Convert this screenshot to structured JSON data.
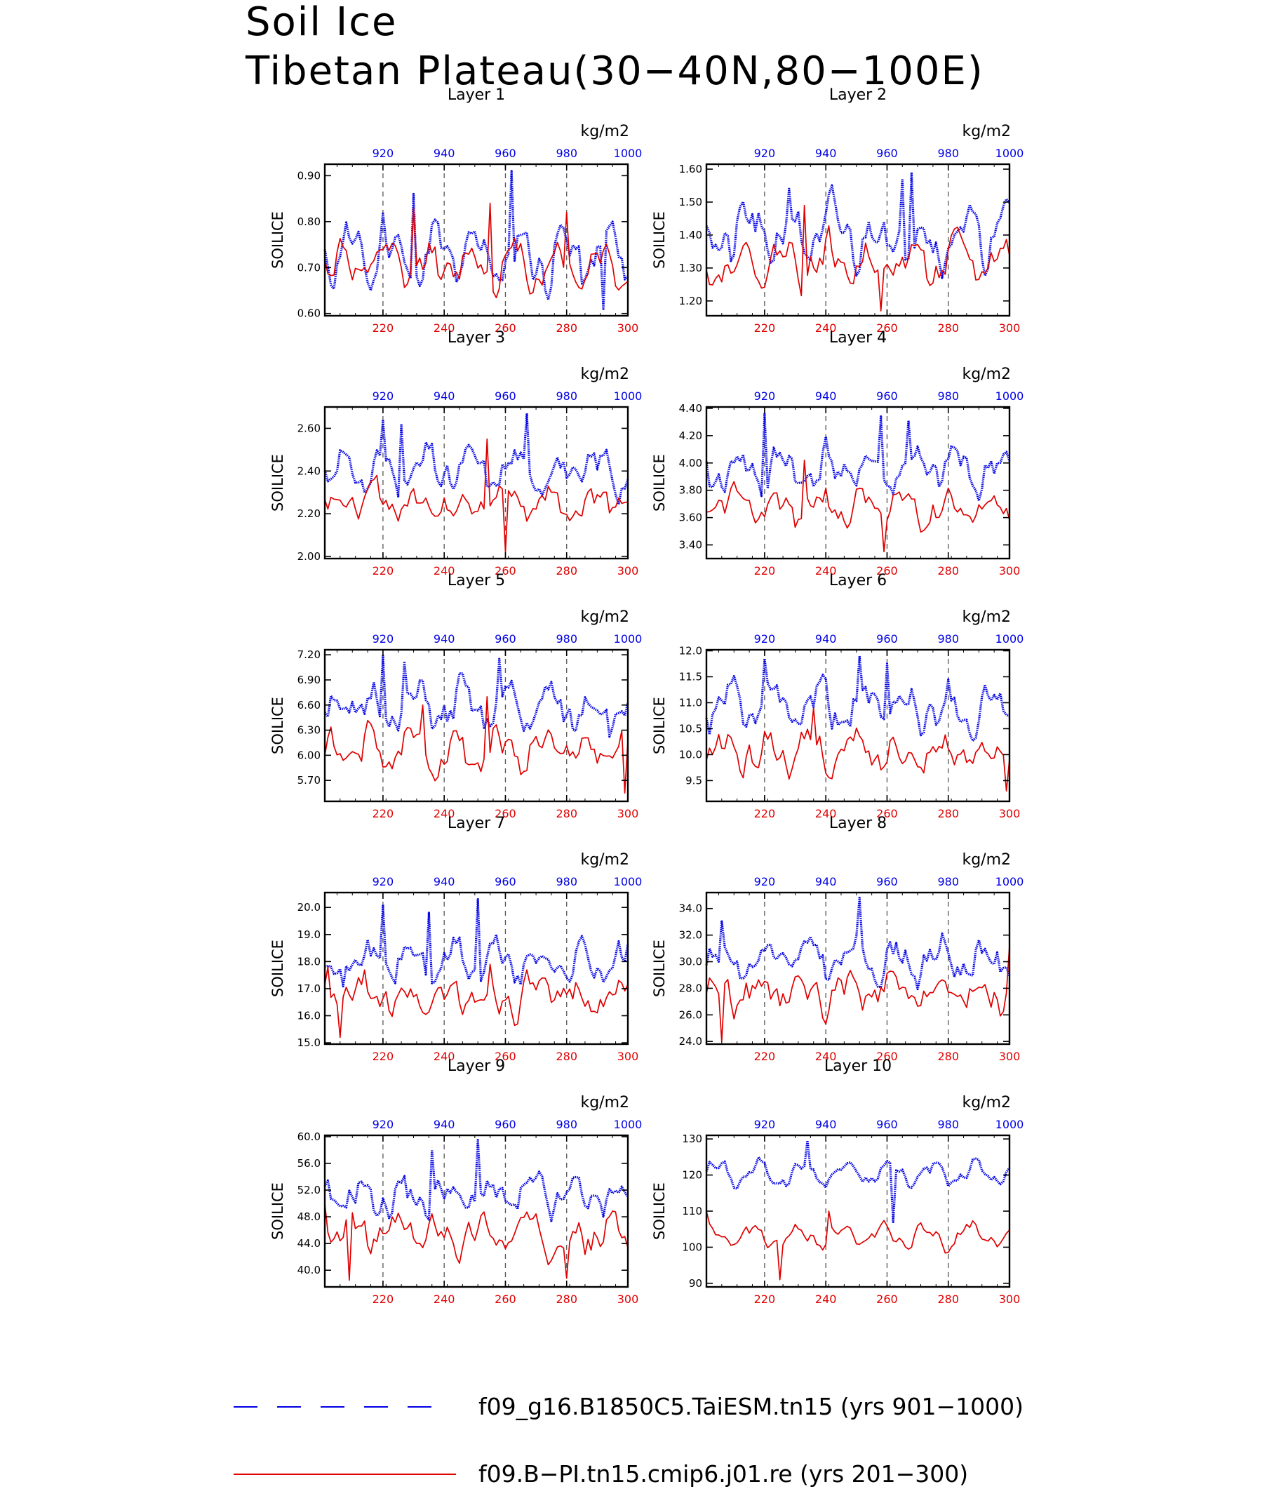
{
  "title": {
    "line1": "Soil Ice",
    "line2": "Tibetan Plateau(30−40N,80−100E)"
  },
  "colors": {
    "series_top": "#0000e6",
    "series_bottom": "#e00000"
  },
  "legend": [
    {
      "label": "f09_g16.B1850C5.TaiESM.tn15 (yrs 901−1000)",
      "style": "dashed",
      "color": "#0000e6"
    },
    {
      "label": "f09.B−PI.tn15.cmip6.j01.re (yrs 201−300)",
      "style": "solid",
      "color": "#e00000"
    }
  ],
  "chart_data": [
    {
      "type": "line",
      "title": "Layer 1",
      "ylabel": "SOILICE",
      "units": "kg/m2",
      "yticks": [
        "0.60",
        "0.70",
        "0.80",
        "0.90"
      ],
      "ylim": [
        0.595,
        0.925
      ],
      "xticks_bottom": [
        "220",
        "240",
        "260",
        "280",
        "300"
      ],
      "xticks_top": [
        "920",
        "940",
        "960",
        "980",
        "1000"
      ],
      "xlim_bottom": [
        201,
        300
      ],
      "xlim_top": [
        901,
        1000
      ],
      "series": [
        {
          "x_axis": "top",
          "base": 0.725,
          "amp": 0.055,
          "noise": 0.06,
          "peaks": [
            [
              920,
              0.82
            ],
            [
              930,
              0.86
            ],
            [
              962,
              0.91
            ],
            [
              992,
              0.61
            ]
          ],
          "lo": 0.605,
          "hi": 0.91,
          "seed": 11
        },
        {
          "x_axis": "bottom",
          "base": 0.705,
          "amp": 0.04,
          "noise": 0.045,
          "peaks": [
            [
              230,
              0.83
            ],
            [
              255,
              0.84
            ],
            [
              280,
              0.82
            ]
          ],
          "lo": 0.62,
          "hi": 0.84,
          "seed": 12
        }
      ]
    },
    {
      "type": "line",
      "title": "Layer 2",
      "ylabel": "SOILICE",
      "units": "kg/m2",
      "yticks": [
        "1.20",
        "1.30",
        "1.40",
        "1.50",
        "1.60"
      ],
      "ylim": [
        1.155,
        1.615
      ],
      "xticks_bottom": [
        "220",
        "240",
        "260",
        "280",
        "300"
      ],
      "xticks_top": [
        "920",
        "940",
        "960",
        "980",
        "1000"
      ],
      "xlim_bottom": [
        201,
        300
      ],
      "xlim_top": [
        901,
        1000
      ],
      "series": [
        {
          "x_axis": "top",
          "base": 1.4,
          "amp": 0.07,
          "noise": 0.09,
          "peaks": [
            [
              928,
              1.54
            ],
            [
              965,
              1.57
            ],
            [
              968,
              1.59
            ]
          ],
          "lo": 1.25,
          "hi": 1.59,
          "seed": 21
        },
        {
          "x_axis": "bottom",
          "base": 1.32,
          "amp": 0.05,
          "noise": 0.07,
          "peaks": [
            [
              233,
              1.49
            ],
            [
              258,
              1.17
            ]
          ],
          "lo": 1.17,
          "hi": 1.49,
          "seed": 22
        }
      ]
    },
    {
      "type": "line",
      "title": "Layer 3",
      "ylabel": "SOILICE",
      "units": "kg/m2",
      "yticks": [
        "2.00",
        "2.20",
        "2.40",
        "2.60"
      ],
      "ylim": [
        1.99,
        2.7
      ],
      "xticks_bottom": [
        "220",
        "240",
        "260",
        "280",
        "300"
      ],
      "xticks_top": [
        "920",
        "940",
        "960",
        "980",
        "1000"
      ],
      "xlim_bottom": [
        201,
        300
      ],
      "xlim_top": [
        901,
        1000
      ],
      "series": [
        {
          "x_axis": "top",
          "base": 2.4,
          "amp": 0.08,
          "noise": 0.1,
          "peaks": [
            [
              920,
              2.64
            ],
            [
              926,
              2.62
            ],
            [
              967,
              2.67
            ]
          ],
          "lo": 2.18,
          "hi": 2.67,
          "seed": 31
        },
        {
          "x_axis": "bottom",
          "base": 2.26,
          "amp": 0.06,
          "noise": 0.09,
          "peaks": [
            [
              254,
              2.55
            ],
            [
              260,
              2.02
            ]
          ],
          "lo": 2.02,
          "hi": 2.55,
          "seed": 32
        }
      ]
    },
    {
      "type": "line",
      "title": "Layer 4",
      "ylabel": "SOILICE",
      "units": "kg/m2",
      "yticks": [
        "3.40",
        "3.60",
        "3.80",
        "4.00",
        "4.20",
        "4.40"
      ],
      "ylim": [
        3.3,
        4.41
      ],
      "xticks_bottom": [
        "220",
        "240",
        "260",
        "280",
        "300"
      ],
      "xticks_top": [
        "920",
        "940",
        "960",
        "980",
        "1000"
      ],
      "xlim_bottom": [
        201,
        300
      ],
      "xlim_top": [
        901,
        1000
      ],
      "series": [
        {
          "x_axis": "top",
          "base": 3.95,
          "amp": 0.13,
          "noise": 0.17,
          "peaks": [
            [
              920,
              4.36
            ],
            [
              958,
              4.34
            ],
            [
              967,
              4.31
            ]
          ],
          "lo": 3.52,
          "hi": 4.36,
          "seed": 41
        },
        {
          "x_axis": "bottom",
          "base": 3.68,
          "amp": 0.11,
          "noise": 0.14,
          "peaks": [
            [
              233,
              4.02
            ],
            [
              259,
              3.35
            ]
          ],
          "lo": 3.35,
          "hi": 4.02,
          "seed": 42
        }
      ]
    },
    {
      "type": "line",
      "title": "Layer 5",
      "ylabel": "SOILICE",
      "units": "kg/m2",
      "yticks": [
        "5.70",
        "6.00",
        "6.30",
        "6.60",
        "6.90",
        "7.20"
      ],
      "ylim": [
        5.45,
        7.26
      ],
      "xticks_bottom": [
        "220",
        "240",
        "260",
        "280",
        "300"
      ],
      "xticks_top": [
        "920",
        "940",
        "960",
        "980",
        "1000"
      ],
      "xlim_bottom": [
        201,
        300
      ],
      "xlim_top": [
        901,
        1000
      ],
      "series": [
        {
          "x_axis": "top",
          "base": 6.55,
          "amp": 0.22,
          "noise": 0.3,
          "peaks": [
            [
              920,
              7.2
            ],
            [
              927,
              7.12
            ],
            [
              958,
              7.15
            ]
          ],
          "lo": 5.95,
          "hi": 7.2,
          "seed": 51
        },
        {
          "x_axis": "bottom",
          "base": 6.05,
          "amp": 0.18,
          "noise": 0.26,
          "peaks": [
            [
              233,
              6.6
            ],
            [
              254,
              6.7
            ],
            [
              299,
              5.55
            ]
          ],
          "lo": 5.55,
          "hi": 6.7,
          "seed": 52
        }
      ]
    },
    {
      "type": "line",
      "title": "Layer 6",
      "ylabel": "SOILICE",
      "units": "kg/m2",
      "yticks": [
        "9.5",
        "10.0",
        "10.5",
        "11.0",
        "11.5",
        "12.0"
      ],
      "ylim": [
        9.1,
        12.02
      ],
      "xticks_bottom": [
        "220",
        "240",
        "260",
        "280",
        "300"
      ],
      "xticks_top": [
        "920",
        "940",
        "960",
        "980",
        "1000"
      ],
      "xlim_bottom": [
        201,
        300
      ],
      "xlim_top": [
        901,
        1000
      ],
      "series": [
        {
          "x_axis": "top",
          "base": 10.9,
          "amp": 0.35,
          "noise": 0.45,
          "peaks": [
            [
              920,
              11.85
            ],
            [
              951,
              11.9
            ],
            [
              960,
              11.75
            ]
          ],
          "lo": 9.95,
          "hi": 11.9,
          "seed": 61
        },
        {
          "x_axis": "bottom",
          "base": 10.05,
          "amp": 0.3,
          "noise": 0.4,
          "peaks": [
            [
              236,
              10.9
            ],
            [
              299,
              9.3
            ]
          ],
          "lo": 9.3,
          "hi": 11.0,
          "seed": 62
        }
      ]
    },
    {
      "type": "line",
      "title": "Layer 7",
      "ylabel": "SOILICE",
      "units": "kg/m2",
      "yticks": [
        "15.0",
        "16.0",
        "17.0",
        "18.0",
        "19.0",
        "20.0"
      ],
      "ylim": [
        14.95,
        20.55
      ],
      "xticks_bottom": [
        "220",
        "240",
        "260",
        "280",
        "300"
      ],
      "xticks_top": [
        "920",
        "940",
        "960",
        "980",
        "1000"
      ],
      "xlim_bottom": [
        201,
        300
      ],
      "xlim_top": [
        901,
        1000
      ],
      "series": [
        {
          "x_axis": "top",
          "base": 18.0,
          "amp": 0.6,
          "noise": 0.8,
          "peaks": [
            [
              920,
              20.1
            ],
            [
              951,
              20.3
            ],
            [
              935,
              19.8
            ]
          ],
          "lo": 16.2,
          "hi": 20.3,
          "seed": 71
        },
        {
          "x_axis": "bottom",
          "base": 16.7,
          "amp": 0.5,
          "noise": 0.8,
          "peaks": [
            [
              202,
              17.8
            ],
            [
              255,
              17.9
            ],
            [
              206,
              15.2
            ]
          ],
          "lo": 15.2,
          "hi": 17.9,
          "seed": 72
        }
      ]
    },
    {
      "type": "line",
      "title": "Layer 8",
      "ylabel": "SOILICE",
      "units": "kg/m2",
      "yticks": [
        "24.0",
        "26.0",
        "28.0",
        "30.0",
        "32.0",
        "34.0"
      ],
      "ylim": [
        23.8,
        35.2
      ],
      "xticks_bottom": [
        "220",
        "240",
        "260",
        "280",
        "300"
      ],
      "xticks_top": [
        "920",
        "940",
        "960",
        "980",
        "1000"
      ],
      "xlim_bottom": [
        201,
        300
      ],
      "xlim_top": [
        901,
        1000
      ],
      "series": [
        {
          "x_axis": "top",
          "base": 30.2,
          "amp": 1.1,
          "noise": 1.5,
          "peaks": [
            [
              951,
              34.8
            ],
            [
              906,
              33.1
            ]
          ],
          "lo": 26.3,
          "hi": 34.8,
          "seed": 81
        },
        {
          "x_axis": "bottom",
          "base": 27.6,
          "amp": 1.0,
          "noise": 1.6,
          "peaks": [
            [
              206,
              24.0
            ],
            [
              300,
              31.2
            ]
          ],
          "lo": 24.0,
          "hi": 31.5,
          "seed": 82
        }
      ]
    },
    {
      "type": "line",
      "title": "Layer 9",
      "ylabel": "SOILICE",
      "units": "kg/m2",
      "yticks": [
        "40.0",
        "44.0",
        "48.0",
        "52.0",
        "56.0",
        "60.0"
      ],
      "ylim": [
        37.5,
        60.2
      ],
      "xticks_bottom": [
        "220",
        "240",
        "260",
        "280",
        "300"
      ],
      "xticks_top": [
        "920",
        "940",
        "960",
        "980",
        "1000"
      ],
      "xlim_bottom": [
        201,
        300
      ],
      "xlim_top": [
        901,
        1000
      ],
      "series": [
        {
          "x_axis": "top",
          "base": 51.0,
          "amp": 2.2,
          "noise": 3.0,
          "peaks": [
            [
              951,
              59.5
            ],
            [
              936,
              58.0
            ]
          ],
          "lo": 42.8,
          "hi": 59.5,
          "seed": 91
        },
        {
          "x_axis": "bottom",
          "base": 45.5,
          "amp": 2.0,
          "noise": 3.2,
          "peaks": [
            [
              209,
              38.5
            ],
            [
              280,
              38.8
            ],
            [
              201,
              50.0
            ]
          ],
          "lo": 38.5,
          "hi": 51.0,
          "seed": 92
        }
      ]
    },
    {
      "type": "line",
      "title": "Layer 10",
      "ylabel": "SOILICE",
      "units": "kg/m2",
      "yticks": [
        "90",
        "100",
        "110",
        "120",
        "130"
      ],
      "ylim": [
        89,
        131
      ],
      "xticks_bottom": [
        "220",
        "240",
        "260",
        "280",
        "300"
      ],
      "xticks_top": [
        "920",
        "940",
        "960",
        "980",
        "1000"
      ],
      "xlim_bottom": [
        201,
        300
      ],
      "xlim_top": [
        901,
        1000
      ],
      "series": [
        {
          "x_axis": "top",
          "base": 120.5,
          "amp": 3.0,
          "noise": 2.2,
          "peaks": [
            [
              934,
              129.5
            ],
            [
              962,
              107.0
            ],
            [
              901,
              121.0
            ]
          ],
          "lo": 107.0,
          "hi": 129.5,
          "seed": 101
        },
        {
          "x_axis": "bottom",
          "base": 103.0,
          "amp": 3.0,
          "noise": 2.4,
          "peaks": [
            [
              201,
              110.0
            ],
            [
              225,
              91.0
            ],
            [
              241,
              110.0
            ]
          ],
          "lo": 91.0,
          "hi": 110.0,
          "seed": 102
        }
      ]
    }
  ]
}
